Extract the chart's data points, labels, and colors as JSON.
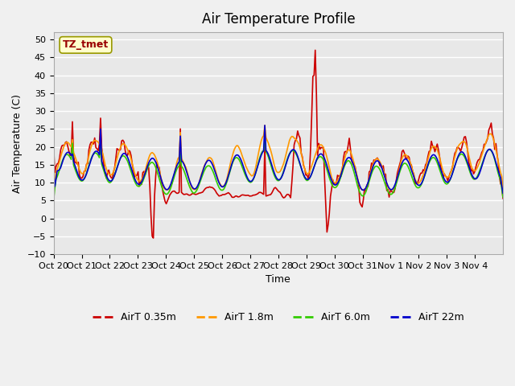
{
  "title": "Air Temperature Profile",
  "xlabel": "Time",
  "ylabel": "Air Temperature (C)",
  "ylim": [
    -10,
    52
  ],
  "yticks": [
    -10,
    -5,
    0,
    5,
    10,
    15,
    20,
    25,
    30,
    35,
    40,
    45,
    50
  ],
  "xtick_labels": [
    "Oct 20",
    "Oct 21",
    "Oct 22",
    "Oct 23",
    "Oct 24",
    "Oct 25",
    "Oct 26",
    "Oct 27",
    "Oct 28",
    "Oct 29",
    "Oct 30",
    "Oct 31",
    "Nov 1",
    "Nov 2",
    "Nov 3",
    "Nov 4"
  ],
  "n_days": 16,
  "colors": {
    "AirT 0.35m": "#cc0000",
    "AirT 1.8m": "#ff9900",
    "AirT 6.0m": "#33cc00",
    "AirT 22m": "#0000cc"
  },
  "fig_bg_color": "#f0f0f0",
  "plot_bg": "#e8e8e8",
  "annotation_text": "TZ_tmet",
  "annotation_bg": "#ffffcc",
  "annotation_border": "#999900",
  "annotation_text_color": "#990000",
  "legend_labels": [
    "AirT 0.35m",
    "AirT 1.8m",
    "AirT 6.0m",
    "AirT 22m"
  ]
}
